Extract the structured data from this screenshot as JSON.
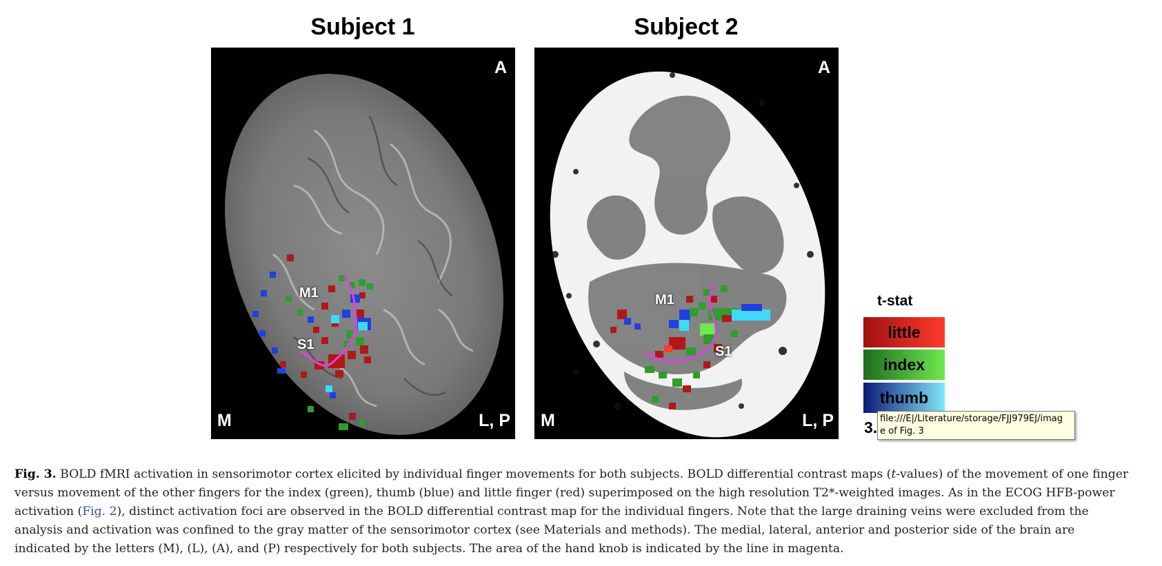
{
  "subjects": [
    {
      "title": "Subject 1",
      "labels": {
        "anterior": "A",
        "medial": "M",
        "lateral_posterior": "L, P",
        "m1": "M1",
        "s1": "S1"
      }
    },
    {
      "title": "Subject 2",
      "labels": {
        "anterior": "A",
        "medial": "M",
        "lateral_posterior": "L, P",
        "m1": "M1",
        "s1": "S1"
      }
    }
  ],
  "legend": {
    "title": "t-stat",
    "items": [
      {
        "label": "little",
        "color_dark": "#a01010",
        "color_light": "#ff3b2e"
      },
      {
        "label": "index",
        "color_dark": "#1e6e1e",
        "color_light": "#6fe84f"
      },
      {
        "label": "thumb",
        "color_dark": "#101a7a",
        "color_light": "#7fe8f8"
      }
    ],
    "min_value": "3.0"
  },
  "tooltip": {
    "line1": "file:///E|/Literature/storage/FJJ979EJ/imag",
    "line2": "e of Fig. 3"
  },
  "caption": {
    "label": "Fig. 3.",
    "part1": " BOLD fMRI activation in sensorimotor cortex elicited by individual finger movements for both subjects. BOLD differential contrast maps (",
    "italic": "t",
    "part2": "-values) of the movement of one finger versus movement of the other fingers for the index (green), thumb (blue) and little finger (red) superimposed on the high resolution T2*-weighted images. As in the ECOG HFB-power activation (",
    "ref": "Fig. 2",
    "part3": "), distinct activation foci are observed in the BOLD differential contrast map for the individual fingers. Note that the large draining veins were excluded from the analysis and activation was confined to the gray matter of the sensorimotor cortex (see Materials and methods). The medial, lateral, anterior and posterior side of the brain are indicated by the letters (M), (L), (A), and (P) respectively for both subjects. The area of the hand knob is indicated by the line in magenta."
  },
  "colors": {
    "hand_knob_line": "#e040e0",
    "activation_red": "#b01818",
    "activation_green": "#2e9e2e",
    "activation_blue": "#2040e0",
    "activation_cyan": "#40d8f8"
  }
}
